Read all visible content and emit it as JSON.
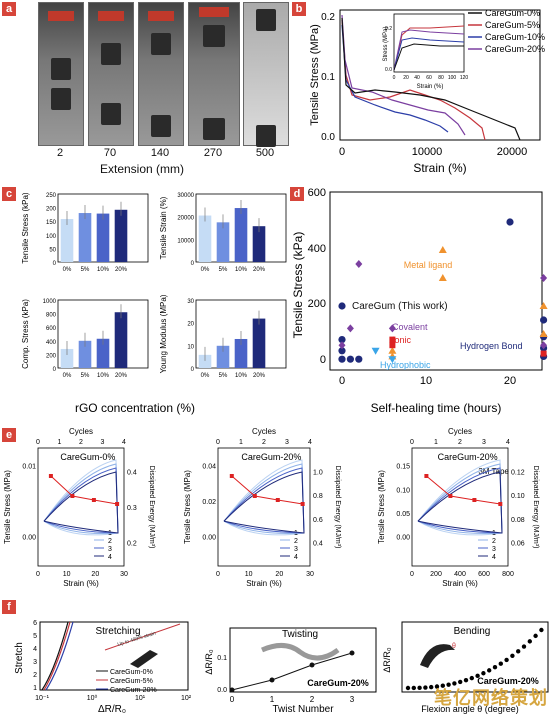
{
  "panels": {
    "a": {
      "label": "a",
      "captions": [
        "2",
        "70",
        "140",
        "270",
        "500"
      ],
      "xlabel": "Extension (mm)"
    },
    "b": {
      "label": "b",
      "xlabel": "Strain (%)",
      "ylabel": "Tensile Stress (MPa)",
      "xticks": [
        "0",
        "10000",
        "20000"
      ],
      "yticks": [
        "0.0",
        "0.1",
        "0.2"
      ],
      "legend": [
        "CareGum-0%",
        "CareGum-5%",
        "CareGum-10%",
        "CareGum-20%"
      ],
      "inset": {
        "ylabel": "Stress (MPa)",
        "xlabel": "Strain (%)",
        "xticks": [
          "0",
          "20",
          "40",
          "60",
          "80",
          "100",
          "120"
        ],
        "yticks": [
          "0.0",
          "0.2"
        ]
      }
    },
    "c": {
      "label": "c",
      "xlabel": "rGO concentration (%)",
      "categories": [
        "0%",
        "5%",
        "10%",
        "20%"
      ],
      "subplots": [
        {
          "ylabel": "Tensile Stress (kPa)",
          "yticks": [
            "0",
            "50",
            "100",
            "150",
            "200",
            "250"
          ],
          "values": [
            158,
            180,
            178,
            192
          ]
        },
        {
          "ylabel": "Tensile Strain (%)",
          "yticks": [
            "0",
            "10000",
            "20000",
            "30000"
          ],
          "values": [
            20500,
            17500,
            23800,
            15800
          ]
        },
        {
          "ylabel": "Comp. Stress (kPa)",
          "yticks": [
            "0",
            "200",
            "400",
            "600",
            "800",
            "1000"
          ],
          "values": [
            280,
            400,
            430,
            820
          ]
        },
        {
          "ylabel": "Young Modulus (MPa)",
          "yticks": [
            "0",
            "10",
            "20",
            "30"
          ],
          "values": [
            5.8,
            9.8,
            12.8,
            21.8
          ]
        }
      ]
    },
    "d": {
      "label": "d",
      "xlabel": "Self-healing time (hours)",
      "ylabel": "Tensile Stress (kPa)",
      "xticks": [
        "0",
        "10",
        "20"
      ],
      "yticks": [
        "0",
        "200",
        "400",
        "600"
      ],
      "annotations": {
        "metal": "Metal ligand",
        "caregum": "CareGum (This work)",
        "covalent": "Covalent",
        "ionic": "Ionic",
        "hydrogen": "Hydrogen Bond",
        "hydrophobic": "Hydrophobic"
      }
    },
    "e": {
      "label": "e",
      "top_label": "Cycles",
      "xlabel": "Strain (%)",
      "ylabel": "Tensile Stress (MPa)",
      "rlabel": "Dissipated Energy (MJ/m³)",
      "subplots": [
        {
          "title": "CareGum-0%",
          "xticks": [
            "0",
            "10",
            "20",
            "30"
          ],
          "yticks": [
            "0.00",
            "0.01"
          ],
          "rticks": [
            "0.2",
            "0.3",
            "0.4"
          ],
          "cycles_ticks": [
            "0",
            "1",
            "2",
            "3",
            "4"
          ],
          "legend": [
            "1",
            "2",
            "3",
            "4"
          ]
        },
        {
          "title": "CareGum-20%",
          "xticks": [
            "0",
            "10",
            "20",
            "30"
          ],
          "yticks": [
            "0.00",
            "0.02",
            "0.04"
          ],
          "rticks": [
            "0.4",
            "0.6",
            "0.8",
            "1.0"
          ],
          "cycles_ticks": [
            "0",
            "1",
            "2",
            "3",
            "4"
          ],
          "legend": [
            "1",
            "2",
            "3",
            "4"
          ]
        },
        {
          "title": "CareGum-20%",
          "subtitle": "3M Tape",
          "xticks": [
            "0",
            "200",
            "400",
            "600",
            "800"
          ],
          "yticks": [
            "0.00",
            "0.05",
            "0.10",
            "0.15"
          ],
          "rticks": [
            "0.06",
            "0.08",
            "0.10",
            "0.12"
          ],
          "cycles_ticks": [
            "0",
            "1",
            "2",
            "3",
            "4"
          ],
          "legend": [
            "1",
            "2",
            "3",
            "4"
          ]
        }
      ]
    },
    "f": {
      "label": "f",
      "subplots": [
        {
          "title": "Stretching",
          "ylabel": "Stretch",
          "xlabel": "ΔR/R₀",
          "yticks": [
            "1",
            "2",
            "3",
            "4",
            "5",
            "6"
          ],
          "xticks": [
            "10⁻¹",
            "10⁰",
            "10¹",
            "10²"
          ],
          "legend": [
            "CareGum-0%",
            "CareGum-5%",
            "CareGum-20%"
          ],
          "arrow_text": "Up to 499% strain"
        },
        {
          "title": "Twisting",
          "ylabel": "ΔR/R₀",
          "xlabel": "Twist Number",
          "xticks": [
            "0",
            "1",
            "2",
            "3"
          ],
          "yticks": [
            "0.0",
            "0.1"
          ],
          "tag": "CareGum-20%"
        },
        {
          "title": "Bending",
          "ylabel": "ΔR/R₀",
          "xlabel": "Flexion angle θ (degree)",
          "tag": "CareGum-20%",
          "theta": "θ"
        }
      ]
    }
  },
  "watermark": "笔亿网络策划",
  "colors": {
    "panel_label": "#d6453a",
    "navy": "#1f2a7a",
    "mid_blue": "#4a63c8",
    "light_blue": "#bcd3f2",
    "purple": "#7b3fa0",
    "orange": "#f0922e",
    "red": "#d22"
  }
}
